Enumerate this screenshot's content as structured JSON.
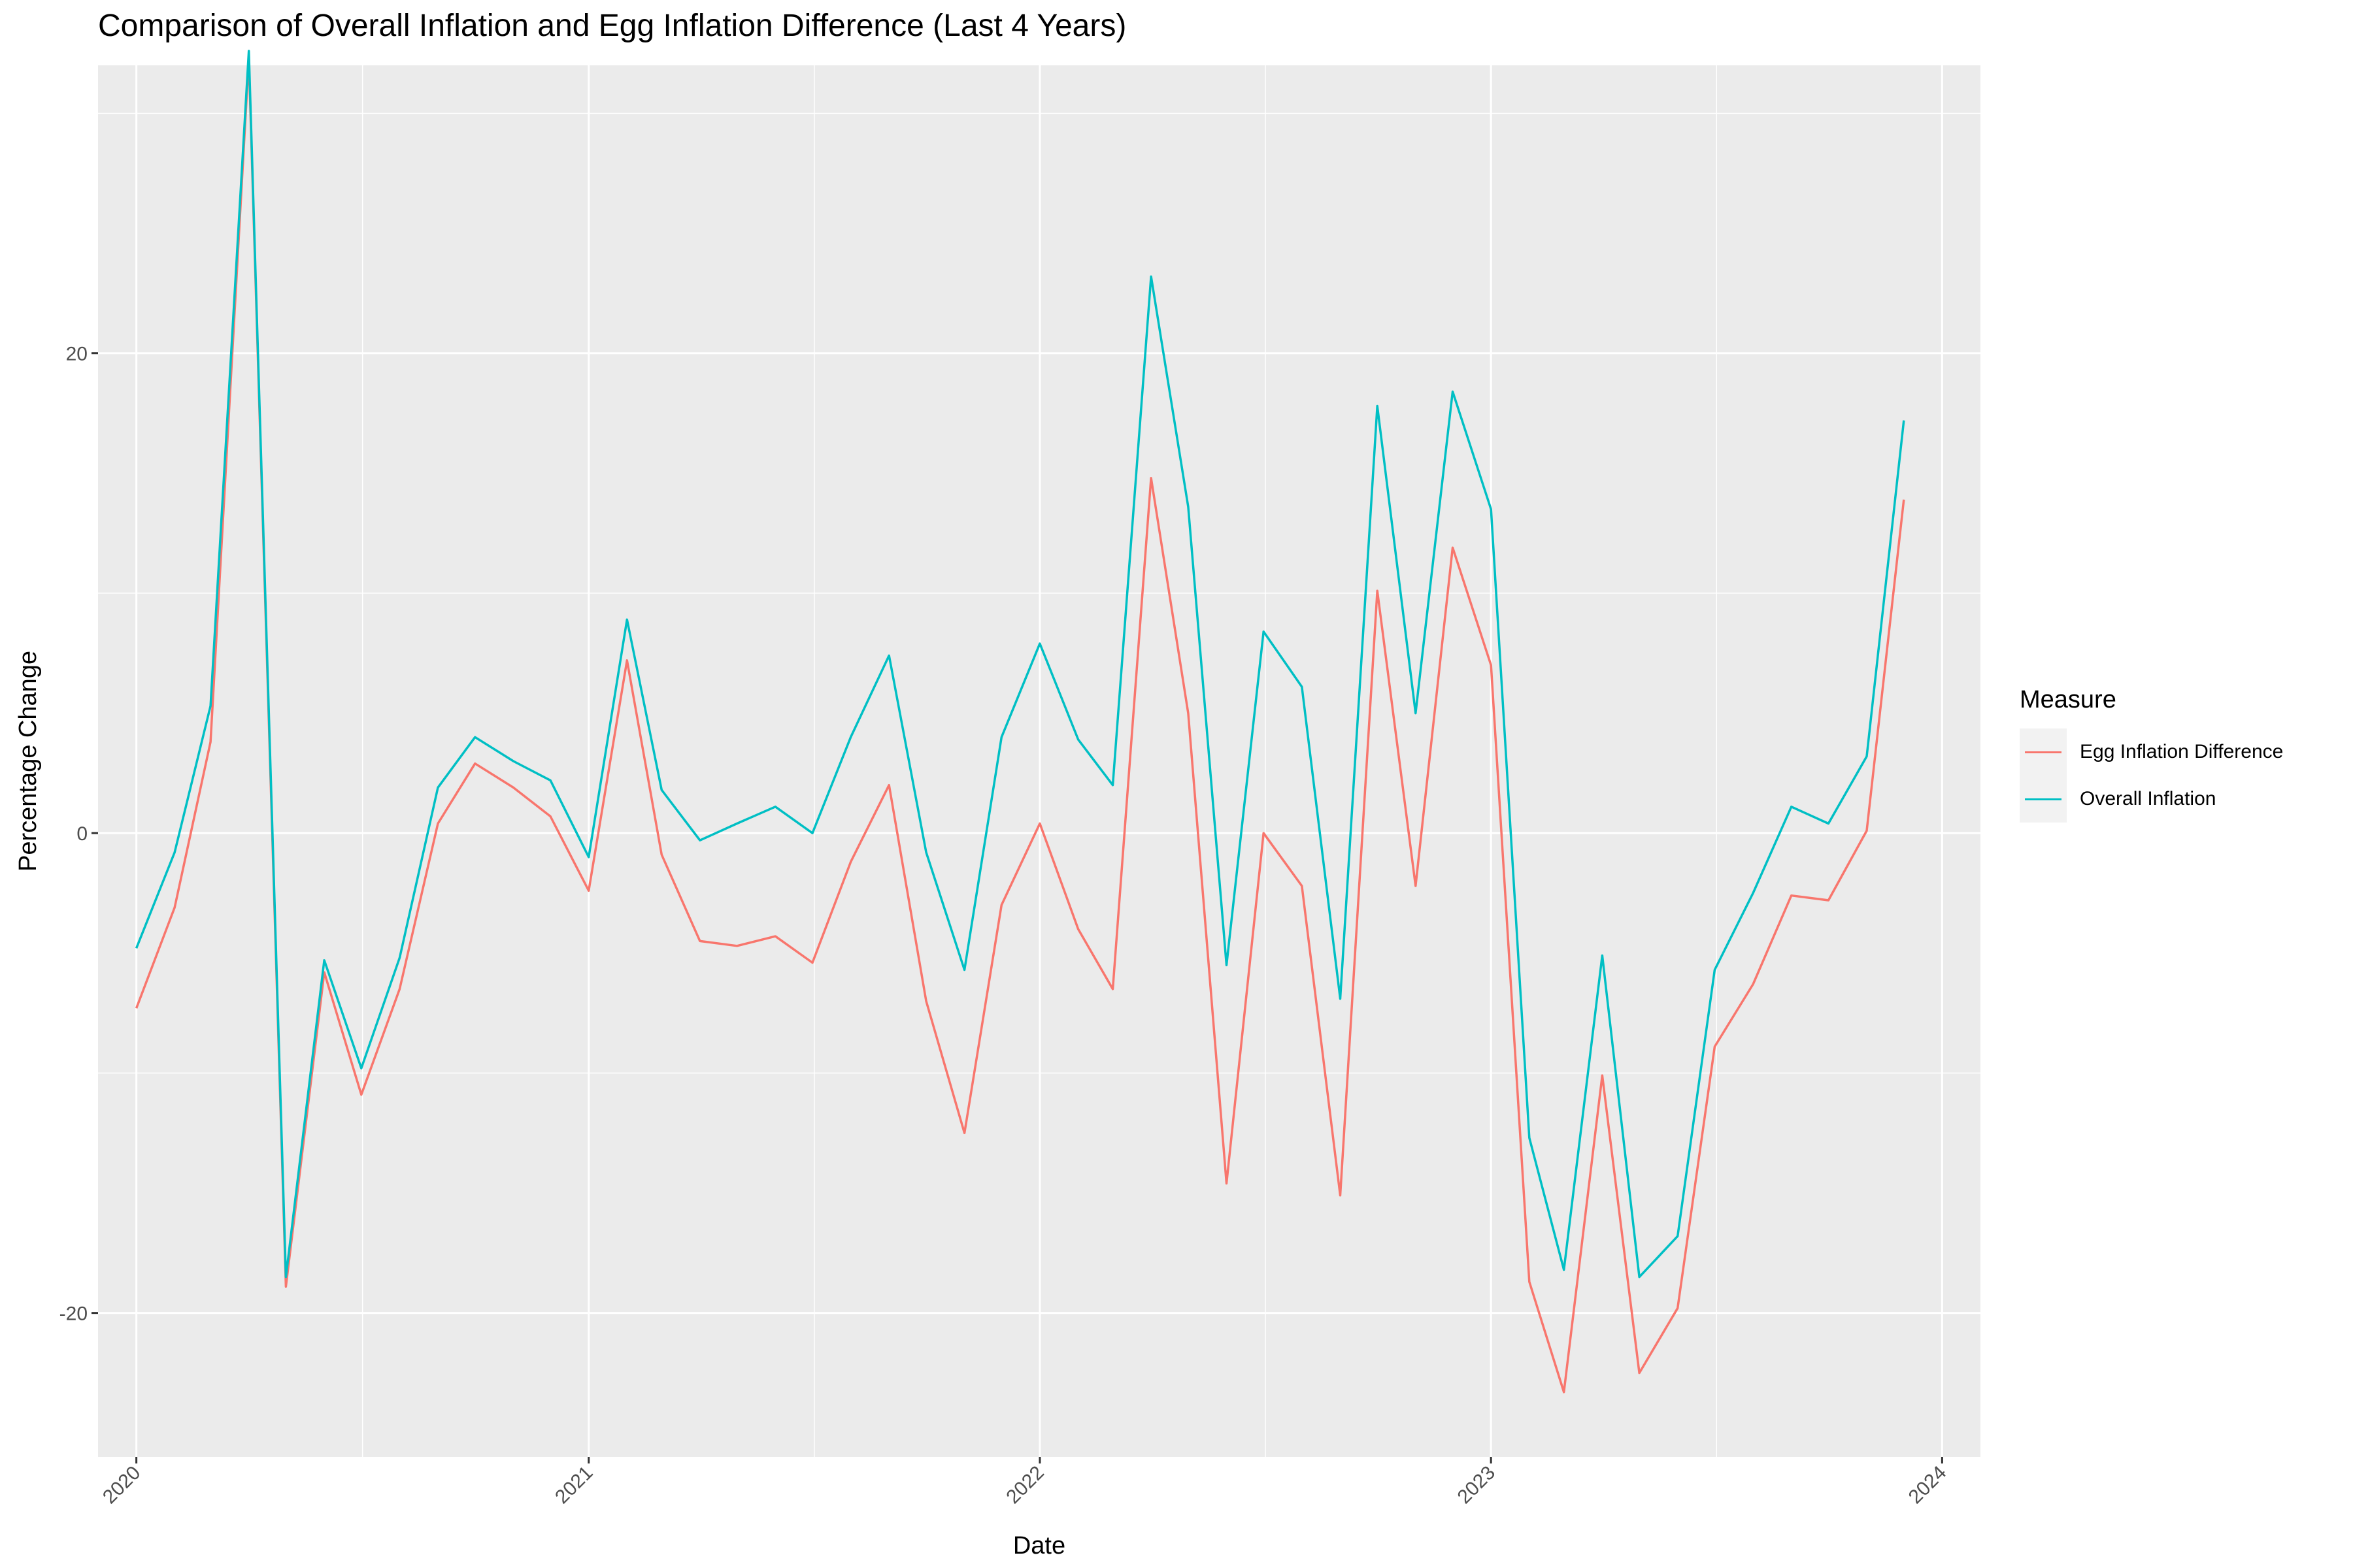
{
  "chart_data": {
    "type": "line",
    "title": "Comparison of Overall Inflation and Egg Inflation Difference (Last 4 Years)",
    "xlabel": "Date",
    "ylabel": "Percentage Change",
    "x_ticks": [
      "2020",
      "2021",
      "2022",
      "2023",
      "2024"
    ],
    "y_ticks": [
      -20,
      0,
      20
    ],
    "ylim": [
      -26,
      32
    ],
    "xlim": [
      "2019-12-01",
      "2024-02-01"
    ],
    "grid": true,
    "legend_title": "Measure",
    "legend_position": "right",
    "x": [
      "2020-01",
      "2020-02",
      "2020-03",
      "2020-04",
      "2020-05",
      "2020-06",
      "2020-07",
      "2020-08",
      "2020-09",
      "2020-10",
      "2020-11",
      "2020-12",
      "2021-01",
      "2021-02",
      "2021-03",
      "2021-04",
      "2021-05",
      "2021-06",
      "2021-07",
      "2021-08",
      "2021-09",
      "2021-10",
      "2021-11",
      "2021-12",
      "2022-01",
      "2022-02",
      "2022-03",
      "2022-04",
      "2022-05",
      "2022-06",
      "2022-07",
      "2022-08",
      "2022-09",
      "2022-10",
      "2022-11",
      "2022-12",
      "2023-01",
      "2023-02",
      "2023-03",
      "2023-04",
      "2023-05",
      "2023-06",
      "2023-07",
      "2023-08",
      "2023-09",
      "2023-10",
      "2023-11",
      "2023-12"
    ],
    "series": [
      {
        "name": "Egg Inflation Difference",
        "color": "#F8766D",
        "values": [
          -7.3,
          -3.1,
          3.8,
          32.3,
          -18.9,
          -5.8,
          -10.9,
          -6.5,
          0.4,
          2.9,
          1.9,
          0.7,
          -2.4,
          7.2,
          -0.9,
          -4.5,
          -4.7,
          -4.3,
          -5.4,
          -1.2,
          2.0,
          -7.0,
          -12.5,
          -3.0,
          0.4,
          -4.0,
          -6.5,
          14.8,
          5.0,
          -14.6,
          0.0,
          -2.2,
          -15.1,
          10.1,
          -2.2,
          11.9,
          7.0,
          -18.7,
          -23.3,
          -10.1,
          -22.5,
          -19.8,
          -8.9,
          -6.3,
          -2.6,
          -2.8,
          0.1,
          13.9
        ]
      },
      {
        "name": "Overall Inflation",
        "color": "#00BFC4",
        "values": [
          -4.8,
          -0.8,
          5.3,
          32.6,
          -18.5,
          -5.3,
          -9.8,
          -5.2,
          1.9,
          4.0,
          3.0,
          2.2,
          -1.0,
          8.9,
          1.8,
          -0.3,
          0.4,
          1.1,
          0.0,
          4.0,
          7.4,
          -0.8,
          -5.7,
          4.0,
          7.9,
          3.9,
          2.0,
          23.2,
          13.6,
          -5.5,
          8.4,
          6.1,
          -6.9,
          17.8,
          5.0,
          18.4,
          13.5,
          -12.7,
          -18.2,
          -5.1,
          -18.5,
          -16.8,
          -5.7,
          -2.5,
          1.1,
          0.4,
          3.2,
          17.2
        ]
      }
    ]
  }
}
